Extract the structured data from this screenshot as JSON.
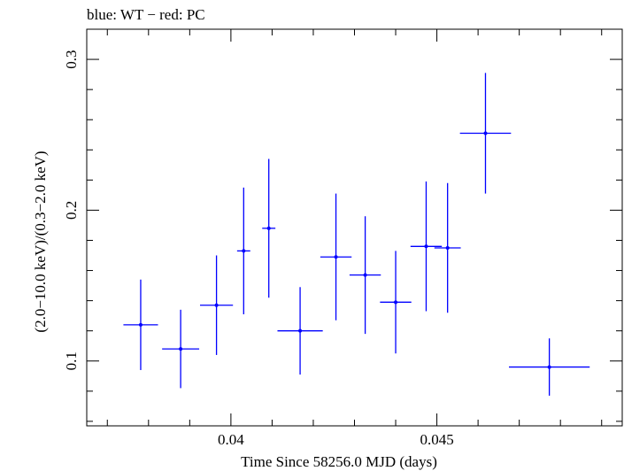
{
  "chart_data": {
    "type": "scatter",
    "title": "blue: WT − red: PC",
    "xlabel": "Time Since 58256.0 MJD (days)",
    "ylabel": "(2.0−10.0 keV)/(0.3−2.0 keV)",
    "xlim": [
      0.0365,
      0.0495
    ],
    "ylim": [
      0.057,
      0.32
    ],
    "xticks": [
      0.04,
      0.045
    ],
    "xtick_labels": [
      "0.04",
      "0.045"
    ],
    "yticks": [
      0.1,
      0.2,
      0.3
    ],
    "ytick_labels": [
      "0.1",
      "0.2",
      "0.3"
    ],
    "grid": false,
    "series": [
      {
        "color": "#0000ff",
        "points": [
          {
            "x": 0.03781,
            "xerr": 0.00042,
            "y": 0.124,
            "yerr_lo": 0.03,
            "yerr_hi": 0.03
          },
          {
            "x": 0.03878,
            "xerr": 0.00045,
            "y": 0.108,
            "yerr_lo": 0.026,
            "yerr_hi": 0.026
          },
          {
            "x": 0.03965,
            "xerr": 0.0004,
            "y": 0.137,
            "yerr_lo": 0.033,
            "yerr_hi": 0.033
          },
          {
            "x": 0.04031,
            "xerr": 0.00016,
            "y": 0.173,
            "yerr_lo": 0.042,
            "yerr_hi": 0.042
          },
          {
            "x": 0.04092,
            "xerr": 0.00016,
            "y": 0.188,
            "yerr_lo": 0.046,
            "yerr_hi": 0.046
          },
          {
            "x": 0.04168,
            "xerr": 0.00055,
            "y": 0.12,
            "yerr_lo": 0.029,
            "yerr_hi": 0.029
          },
          {
            "x": 0.04255,
            "xerr": 0.00038,
            "y": 0.169,
            "yerr_lo": 0.042,
            "yerr_hi": 0.042
          },
          {
            "x": 0.04326,
            "xerr": 0.00038,
            "y": 0.157,
            "yerr_lo": 0.039,
            "yerr_hi": 0.039
          },
          {
            "x": 0.044,
            "xerr": 0.00038,
            "y": 0.139,
            "yerr_lo": 0.034,
            "yerr_hi": 0.034
          },
          {
            "x": 0.04474,
            "xerr": 0.00038,
            "y": 0.176,
            "yerr_lo": 0.043,
            "yerr_hi": 0.043
          },
          {
            "x": 0.04526,
            "xerr": 0.00032,
            "y": 0.175,
            "yerr_lo": 0.043,
            "yerr_hi": 0.043
          },
          {
            "x": 0.04618,
            "xerr": 0.00062,
            "y": 0.251,
            "yerr_lo": 0.04,
            "yerr_hi": 0.04
          },
          {
            "x": 0.04773,
            "xerr": 0.00098,
            "y": 0.096,
            "yerr_lo": 0.019,
            "yerr_hi": 0.019
          }
        ]
      }
    ]
  }
}
